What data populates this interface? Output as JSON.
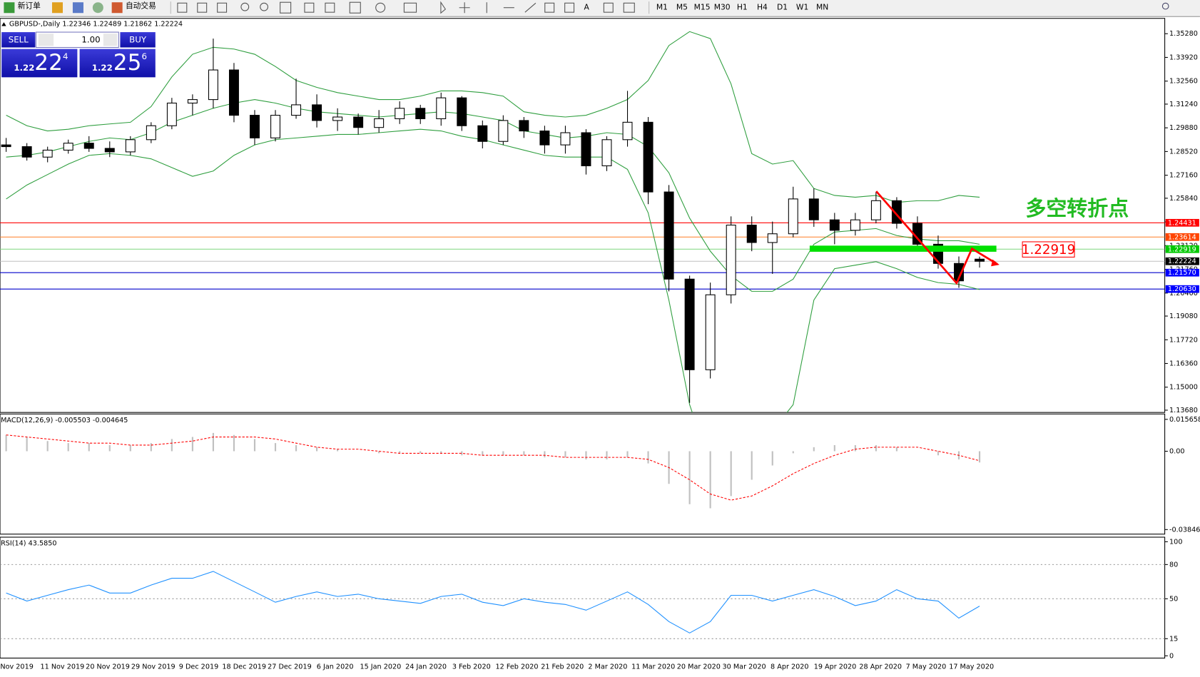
{
  "toolbar": {
    "new_order": "新订单",
    "auto_trading": "自动交易",
    "timeframes": [
      "M1",
      "M5",
      "M15",
      "M30",
      "H1",
      "H4",
      "D1",
      "W1",
      "MN"
    ]
  },
  "trade_panel": {
    "sell": "SELL",
    "buy": "BUY",
    "lot": "1.00",
    "sell_price": {
      "prefix": "1.22",
      "main": "22",
      "small": "4"
    },
    "buy_price": {
      "prefix": "1.22",
      "main": "25",
      "small": "6"
    }
  },
  "chart_data": [
    {
      "type": "candlestick",
      "title": "GBPUSD-,Daily  1.22346 1.22489 1.21862 1.22224",
      "time_labels": [
        "Nov 2019",
        "11 Nov 2019",
        "20 Nov 2019",
        "29 Nov 2019",
        "9 Dec 2019",
        "18 Dec 2019",
        "27 Dec 2019",
        "6 Jan 2020",
        "15 Jan 2020",
        "24 Jan 2020",
        "3 Feb 2020",
        "12 Feb 2020",
        "21 Feb 2020",
        "2 Mar 2020",
        "11 Mar 2020",
        "20 Mar 2020",
        "30 Mar 2020",
        "8 Apr 2020",
        "19 Apr 2020",
        "28 Apr 2020",
        "7 May 2020",
        "17 May 2020"
      ],
      "open": [
        1.289,
        1.288,
        1.282,
        1.286,
        1.29,
        1.287,
        1.285,
        1.292,
        1.3,
        1.313,
        1.315,
        1.332,
        1.306,
        1.293,
        1.306,
        1.312,
        1.303,
        1.305,
        1.299,
        1.304,
        1.31,
        1.304,
        1.316,
        1.3,
        1.291,
        1.303,
        1.297,
        1.289,
        1.296,
        1.277,
        1.292,
        1.302,
        1.262,
        1.212,
        1.16,
        1.203,
        1.243,
        1.233,
        1.238,
        1.258,
        1.246,
        1.24,
        1.246,
        1.257,
        1.244,
        1.232,
        1.221,
        1.22346
      ],
      "high": [
        1.293,
        1.29,
        1.288,
        1.292,
        1.294,
        1.291,
        1.294,
        1.302,
        1.316,
        1.318,
        1.35,
        1.336,
        1.309,
        1.309,
        1.327,
        1.318,
        1.31,
        1.307,
        1.309,
        1.314,
        1.312,
        1.319,
        1.317,
        1.303,
        1.306,
        1.305,
        1.3,
        1.3,
        1.298,
        1.294,
        1.32,
        1.305,
        1.266,
        1.214,
        1.21,
        1.248,
        1.248,
        1.245,
        1.265,
        1.264,
        1.25,
        1.25,
        1.262,
        1.259,
        1.248,
        1.237,
        1.225,
        1.22489
      ],
      "low": [
        1.285,
        1.28,
        1.279,
        1.284,
        1.285,
        1.282,
        1.283,
        1.29,
        1.298,
        1.306,
        1.31,
        1.302,
        1.289,
        1.291,
        1.304,
        1.299,
        1.297,
        1.295,
        1.296,
        1.301,
        1.301,
        1.3,
        1.297,
        1.287,
        1.289,
        1.293,
        1.284,
        1.284,
        1.272,
        1.274,
        1.288,
        1.255,
        1.205,
        1.141,
        1.155,
        1.198,
        1.228,
        1.215,
        1.236,
        1.242,
        1.232,
        1.237,
        1.244,
        1.241,
        1.229,
        1.218,
        1.207,
        1.21862
      ],
      "close": [
        1.288,
        1.282,
        1.286,
        1.29,
        1.287,
        1.285,
        1.292,
        1.3,
        1.313,
        1.315,
        1.332,
        1.306,
        1.293,
        1.306,
        1.312,
        1.303,
        1.305,
        1.299,
        1.304,
        1.31,
        1.304,
        1.316,
        1.3,
        1.291,
        1.303,
        1.297,
        1.289,
        1.296,
        1.277,
        1.292,
        1.302,
        1.262,
        1.212,
        1.16,
        1.203,
        1.243,
        1.233,
        1.238,
        1.258,
        1.246,
        1.24,
        1.246,
        1.257,
        1.244,
        1.232,
        1.221,
        1.211,
        1.22224
      ],
      "bands": [
        {
          "color": "#2e9e3e",
          "values": [
            1.306,
            1.3,
            1.297,
            1.298,
            1.3,
            1.301,
            1.302,
            1.311,
            1.328,
            1.341,
            1.345,
            1.344,
            1.341,
            1.334,
            1.326,
            1.322,
            1.319,
            1.317,
            1.315,
            1.315,
            1.317,
            1.32,
            1.32,
            1.319,
            1.317,
            1.308,
            1.306,
            1.305,
            1.306,
            1.31,
            1.315,
            1.326,
            1.346,
            1.354,
            1.35,
            1.324,
            1.284,
            1.278,
            1.28,
            1.264,
            1.26,
            1.259,
            1.26,
            1.256,
            1.257,
            1.257,
            1.26,
            1.259
          ]
        },
        {
          "color": "#2e9e3e",
          "values": [
            1.282,
            1.283,
            1.285,
            1.288,
            1.291,
            1.293,
            1.292,
            1.296,
            1.302,
            1.306,
            1.31,
            1.313,
            1.315,
            1.313,
            1.31,
            1.308,
            1.307,
            1.306,
            1.305,
            1.306,
            1.307,
            1.308,
            1.307,
            1.305,
            1.303,
            1.297,
            1.295,
            1.293,
            1.294,
            1.296,
            1.295,
            1.288,
            1.273,
            1.247,
            1.228,
            1.214,
            1.205,
            1.205,
            1.212,
            1.232,
            1.239,
            1.24,
            1.241,
            1.237,
            1.235,
            1.234,
            1.234,
            1.232
          ]
        },
        {
          "color": "#2e9e3e",
          "values": [
            1.258,
            1.266,
            1.272,
            1.278,
            1.283,
            1.284,
            1.283,
            1.281,
            1.276,
            1.271,
            1.274,
            1.283,
            1.289,
            1.292,
            1.293,
            1.294,
            1.295,
            1.295,
            1.296,
            1.297,
            1.298,
            1.297,
            1.294,
            1.292,
            1.289,
            1.286,
            1.283,
            1.282,
            1.282,
            1.282,
            1.275,
            1.25,
            1.2,
            1.14,
            1.105,
            1.1,
            1.11,
            1.125,
            1.14,
            1.2,
            1.218,
            1.22,
            1.222,
            1.218,
            1.213,
            1.21,
            1.209,
            1.206
          ]
        }
      ],
      "levels": [
        {
          "value": 1.24431,
          "color": "#ff0000",
          "line_color": "#ff0000"
        },
        {
          "value": 1.23614,
          "color": "#ff4500",
          "line_color": "#ff7f27"
        },
        {
          "value": 1.22919,
          "color": "#00c800",
          "line_color": "#7fd77f"
        },
        {
          "value": 1.22224,
          "color": "#000000",
          "line_color": "#c0c0c0"
        },
        {
          "value": 1.2157,
          "label": "1.21570",
          "color": "#0000ff",
          "line_color": "#0000cc"
        },
        {
          "value": 1.2063,
          "label": "1.20630",
          "color": "#0000ff",
          "line_color": "#0000cc"
        }
      ],
      "annotations": {
        "title": "多空转折点",
        "price_box": "1.22919"
      },
      "ylim": [
        1.1355,
        1.3616
      ],
      "yticks": [
        {
          "value": 1.3528,
          "label": "1.35280"
        },
        {
          "value": 1.3392,
          "label": "1.33920"
        },
        {
          "value": 1.3256,
          "label": "1.32560"
        },
        {
          "value": 1.3124,
          "label": "1.31240"
        },
        {
          "value": 1.2988,
          "label": "1.29880"
        },
        {
          "value": 1.2852,
          "label": "1.28520"
        },
        {
          "value": 1.2716,
          "label": "1.27160"
        },
        {
          "value": 1.2584,
          "label": "1.25840"
        },
        {
          "value": 1.2448,
          "label": "1.24480"
        },
        {
          "value": 1.2312,
          "label": "1.23120"
        },
        {
          "value": 1.2176,
          "label": "1.21760"
        },
        {
          "value": 1.204,
          "label": "1.20400"
        },
        {
          "value": 1.1908,
          "label": "1.19080"
        },
        {
          "value": 1.1772,
          "label": "1.17720"
        },
        {
          "value": 1.1636,
          "label": "1.16360"
        },
        {
          "value": 1.15,
          "label": "1.15000"
        },
        {
          "value": 1.1368,
          "label": "1.13680"
        }
      ]
    },
    {
      "type": "macd",
      "title": "MACD(12,26,9) -0.005503 -0.004645",
      "series": [
        {
          "name": "MACD",
          "color": "#c0c0c0",
          "values": [
            0.008,
            0.007,
            0.005,
            0.004,
            0.004,
            0.003,
            0.003,
            0.004,
            0.006,
            0.007,
            0.009,
            0.008,
            0.006,
            0.004,
            0.003,
            0.002,
            0.001,
            0.0,
            -0.001,
            -0.001,
            -0.001,
            -0.001,
            -0.002,
            -0.002,
            -0.002,
            -0.002,
            -0.003,
            -0.003,
            -0.004,
            -0.004,
            -0.003,
            -0.006,
            -0.016,
            -0.026,
            -0.028,
            -0.022,
            -0.014,
            -0.007,
            -0.001,
            0.002,
            0.003,
            0.003,
            0.003,
            0.002,
            0.0,
            -0.002,
            -0.004,
            -0.005503
          ]
        },
        {
          "name": "Signal",
          "color": "#ff0000",
          "values": [
            0.008,
            0.007,
            0.006,
            0.005,
            0.004,
            0.004,
            0.003,
            0.003,
            0.004,
            0.005,
            0.007,
            0.007,
            0.007,
            0.006,
            0.004,
            0.002,
            0.001,
            0.001,
            0.0,
            -0.001,
            -0.001,
            -0.001,
            -0.001,
            -0.002,
            -0.002,
            -0.002,
            -0.002,
            -0.003,
            -0.003,
            -0.003,
            -0.003,
            -0.004,
            -0.008,
            -0.014,
            -0.021,
            -0.024,
            -0.022,
            -0.017,
            -0.011,
            -0.006,
            -0.002,
            0.001,
            0.002,
            0.002,
            0.002,
            0.0,
            -0.002,
            -0.004645
          ]
        }
      ],
      "ylim": [
        -0.0407,
        0.0183
      ],
      "yticks": [
        0.015658,
        {
          "value": 0,
          "label": "0.00"
        },
        -0.038465
      ]
    },
    {
      "type": "line",
      "title": "RSI(14) 43.5850",
      "color": "#1e90ff",
      "values": [
        55,
        48,
        53,
        58,
        62,
        55,
        55,
        62,
        68,
        68,
        74,
        65,
        56,
        47,
        52,
        56,
        52,
        54,
        50,
        48,
        46,
        52,
        54,
        47,
        44,
        50,
        47,
        45,
        40,
        48,
        56,
        45,
        30,
        20,
        30,
        53,
        53,
        48,
        53,
        58,
        52,
        44,
        48,
        58,
        50,
        48,
        33,
        43.585
      ],
      "ylim": [
        -2,
        104
      ],
      "yticks": [
        100,
        80,
        50,
        15,
        0
      ],
      "levels": [
        80,
        50,
        15
      ]
    }
  ]
}
